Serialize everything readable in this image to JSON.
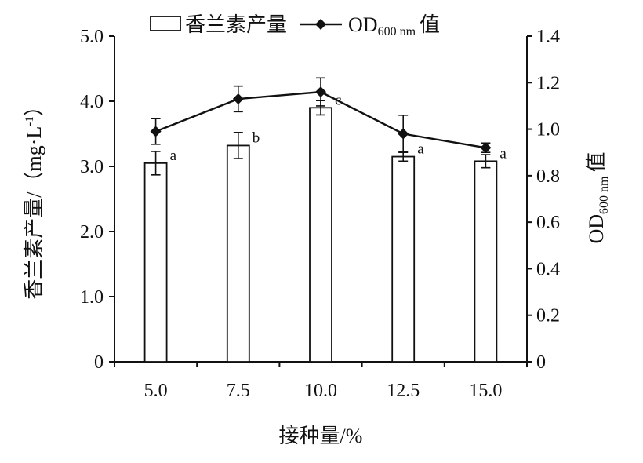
{
  "chart_data": {
    "type": "bar",
    "categories": [
      "5.0",
      "7.5",
      "10.0",
      "12.5",
      "15.0"
    ],
    "series": [
      {
        "name": "香兰素产量",
        "type": "bar",
        "axis": "left",
        "values": [
          3.05,
          3.32,
          3.9,
          3.15,
          3.08
        ],
        "errors": [
          0.18,
          0.2,
          0.11,
          0.07,
          0.1
        ],
        "significance": [
          "a",
          "b",
          "c",
          "a",
          "a"
        ]
      },
      {
        "name": "OD600 nm 值",
        "type": "line",
        "axis": "right",
        "values": [
          0.99,
          1.13,
          1.16,
          0.98,
          0.92
        ],
        "errors": [
          0.055,
          0.055,
          0.06,
          0.08,
          0.02
        ]
      }
    ],
    "xlabel": "接种量/%",
    "ylabel_left": "香兰素产量/（mg·L",
    "ylabel_left_sup": "-1",
    "ylabel_left_close": "）",
    "ylabel_right_main": "OD",
    "ylabel_right_sub": "600 nm",
    "ylabel_right_tail": "值",
    "ylim_left": [
      0,
      5.0
    ],
    "ylim_right": [
      0,
      1.4
    ],
    "yticks_left": [
      "0",
      "1.0",
      "2.0",
      "3.0",
      "4.0",
      "5.0"
    ],
    "yticks_right": [
      "0",
      "0.2",
      "0.4",
      "0.6",
      "0.8",
      "1.0",
      "1.2",
      "1.4"
    ],
    "legend": {
      "bar_label": "香兰素产量",
      "line_main": "OD",
      "line_sub": "600 nm",
      "line_tail": "值",
      "placement": "top-center"
    },
    "grid": false
  }
}
